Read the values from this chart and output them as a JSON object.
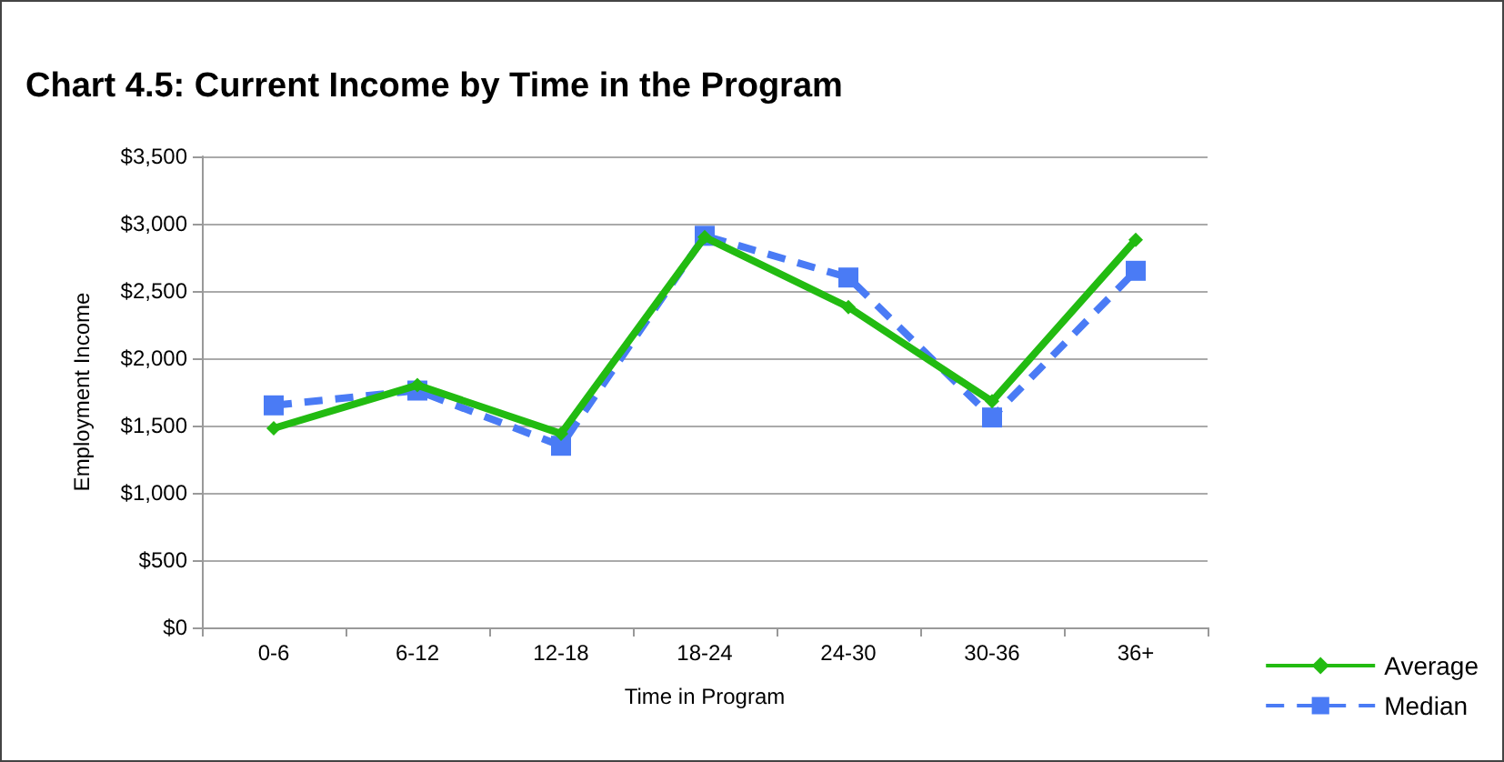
{
  "chart_data": {
    "type": "line",
    "title": "Chart 4.5: Current Income by Time in the Program",
    "xlabel": "Time in Program",
    "ylabel": "Employment Income",
    "categories": [
      "0-6",
      "6-12",
      "12-18",
      "18-24",
      "24-30",
      "30-36",
      "36+"
    ],
    "series": [
      {
        "name": "Average",
        "color": "#22bb11",
        "marker": "diamond",
        "line_style": "solid",
        "values": [
          1480,
          1800,
          1440,
          2900,
          2380,
          1680,
          2880
        ]
      },
      {
        "name": "Median",
        "color": "#4a7bf5",
        "marker": "square",
        "line_style": "dashed",
        "values": [
          1650,
          1760,
          1350,
          2910,
          2600,
          1560,
          2650
        ]
      }
    ],
    "ylim": [
      0,
      3500
    ],
    "yticks": [
      {
        "value": 0,
        "label": "$0"
      },
      {
        "value": 500,
        "label": "$500"
      },
      {
        "value": 1000,
        "label": "$1,000"
      },
      {
        "value": 1500,
        "label": "$1,500"
      },
      {
        "value": 2000,
        "label": "$2,000"
      },
      {
        "value": 2500,
        "label": "$2,500"
      },
      {
        "value": 3000,
        "label": "$3,000"
      },
      {
        "value": 3500,
        "label": "$3,500"
      }
    ],
    "grid": "y",
    "legend": "bottom right"
  }
}
